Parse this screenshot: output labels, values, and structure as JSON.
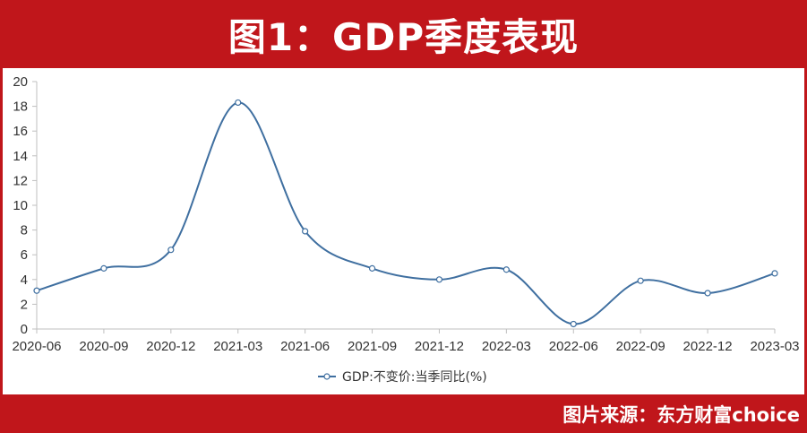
{
  "header": {
    "title": "图1：GDP季度表现"
  },
  "footer": {
    "source": "图片来源：东方财富choice"
  },
  "colors": {
    "background": "#c0161b",
    "series": "#3f6fa0"
  },
  "chart_data": {
    "type": "line",
    "title": "",
    "xlabel": "",
    "ylabel": "",
    "ylim": [
      0,
      20
    ],
    "yticks": [
      "0",
      "2",
      "4",
      "6",
      "8",
      "10",
      "12",
      "14",
      "16",
      "18",
      "20"
    ],
    "categories": [
      "2020-06",
      "2020-09",
      "2020-12",
      "2021-03",
      "2021-06",
      "2021-09",
      "2021-12",
      "2022-03",
      "2022-06",
      "2022-09",
      "2022-12",
      "2023-03"
    ],
    "series": [
      {
        "name": "GDP:不变价:当季同比(%)",
        "values": [
          3.1,
          4.9,
          6.4,
          18.3,
          7.9,
          4.9,
          4.0,
          4.8,
          0.4,
          3.9,
          2.9,
          4.5
        ]
      }
    ],
    "legend_position": "bottom",
    "grid": false,
    "smooth": true
  }
}
